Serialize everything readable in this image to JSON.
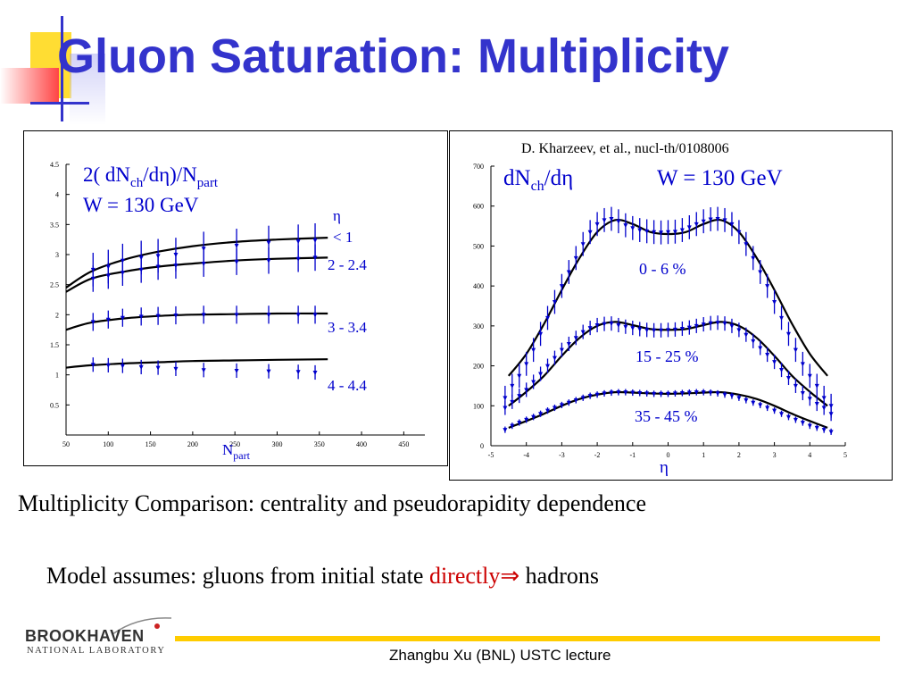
{
  "slide": {
    "title": "Gluon Saturation: Multiplicity",
    "caption": "Multiplicity Comparison: centrality and pseudorapidity dependence",
    "model_text": "Model assumes: gluons from initial state ",
    "model_highlight": "directly",
    "model_arrow": "⇒",
    "model_end": " hadrons",
    "footer": "Zhangbu Xu (BNL) USTC lecture",
    "logo_name": "BROOKHAVEN",
    "logo_sub": "NATIONAL LABORATORY"
  },
  "colors": {
    "title": "#3333cc",
    "highlight": "#cc0000",
    "data": "#0000cc",
    "model": "#000000",
    "footer_line": "#ffcc00",
    "deco_yellow": "#ffdd33",
    "deco_red": "#ff4444",
    "deco_blue": "#3333cc"
  },
  "chart_data": [
    {
      "type": "scatter",
      "title_line1": "2( dN",
      "title_sub1": "ch",
      "title_mid": "/dη)/N",
      "title_sub2": "part",
      "title_line2": "W = 130 GeV",
      "xlabel": "N",
      "xlabel_sub": "part",
      "xlim": [
        50,
        475
      ],
      "ylim": [
        0,
        4.5
      ],
      "xticks": [
        50,
        100,
        150,
        200,
        250,
        300,
        350,
        400,
        450
      ],
      "yticks": [
        0.5,
        1,
        1.5,
        2,
        2.5,
        3,
        3.5,
        4,
        4.5
      ],
      "legend_header": [
        "η",
        "< 1"
      ],
      "series": [
        {
          "name": "< 1",
          "x": [
            82,
            100,
            117,
            139,
            159,
            180,
            213,
            252,
            290,
            325,
            345
          ],
          "y": [
            2.75,
            2.8,
            2.9,
            2.95,
            2.98,
            3.0,
            3.1,
            3.15,
            3.2,
            3.22,
            3.24
          ],
          "err": [
            0.28,
            0.28,
            0.28,
            0.28,
            0.28,
            0.28,
            0.28,
            0.28,
            0.28,
            0.28,
            0.28
          ],
          "model": {
            "x": [
              50,
              80,
              120,
              160,
              200,
              250,
              300,
              360
            ],
            "y": [
              2.45,
              2.72,
              2.92,
              3.05,
              3.14,
              3.21,
              3.25,
              3.28
            ]
          }
        },
        {
          "name": "2 - 2.4",
          "x": [
            82,
            100,
            117,
            139,
            159,
            180,
            213,
            252,
            290,
            325,
            345
          ],
          "y": [
            2.6,
            2.65,
            2.7,
            2.75,
            2.8,
            2.82,
            2.85,
            2.88,
            2.9,
            2.93,
            2.95
          ],
          "err": [
            0.22,
            0.22,
            0.22,
            0.22,
            0.22,
            0.22,
            0.22,
            0.22,
            0.22,
            0.22,
            0.22
          ],
          "model": {
            "x": [
              50,
              80,
              120,
              160,
              200,
              250,
              300,
              360
            ],
            "y": [
              2.38,
              2.6,
              2.72,
              2.8,
              2.85,
              2.9,
              2.93,
              2.95
            ]
          }
        },
        {
          "name": "3 - 3.4",
          "x": [
            82,
            100,
            117,
            139,
            159,
            180,
            213,
            252,
            290,
            325,
            345
          ],
          "y": [
            1.88,
            1.92,
            1.95,
            1.97,
            1.98,
            1.99,
            2.0,
            2.0,
            2.0,
            2.0,
            2.0
          ],
          "err": [
            0.15,
            0.15,
            0.15,
            0.15,
            0.15,
            0.15,
            0.15,
            0.15,
            0.15,
            0.15,
            0.15
          ],
          "model": {
            "x": [
              50,
              80,
              120,
              160,
              200,
              250,
              300,
              360
            ],
            "y": [
              1.75,
              1.87,
              1.94,
              1.98,
              2.0,
              2.01,
              2.02,
              2.02
            ]
          }
        },
        {
          "name": "4 - 4.4",
          "x": [
            82,
            100,
            117,
            139,
            159,
            180,
            213,
            252,
            290,
            325,
            345
          ],
          "y": [
            1.17,
            1.16,
            1.15,
            1.13,
            1.12,
            1.1,
            1.08,
            1.07,
            1.06,
            1.05,
            1.04
          ],
          "err": [
            0.12,
            0.12,
            0.12,
            0.12,
            0.12,
            0.12,
            0.12,
            0.12,
            0.12,
            0.12,
            0.12
          ],
          "model": {
            "x": [
              50,
              80,
              120,
              160,
              200,
              250,
              300,
              360
            ],
            "y": [
              1.12,
              1.16,
              1.19,
              1.21,
              1.23,
              1.24,
              1.25,
              1.26
            ]
          }
        }
      ]
    },
    {
      "type": "scatter",
      "citation": "D. Kharzeev, et al., nucl-th/0108006",
      "title_left": "dN",
      "title_left_sub": "ch",
      "title_left_end": "/dη",
      "title_right": "W = 130 GeV",
      "xlabel": "η",
      "xlim": [
        -5,
        5
      ],
      "ylim": [
        0,
        700
      ],
      "xticks": [
        -5,
        -4,
        -3,
        -2,
        -1,
        0,
        1,
        2,
        3,
        4,
        5
      ],
      "yticks": [
        0,
        100,
        200,
        300,
        400,
        500,
        600,
        700
      ],
      "series": [
        {
          "name": "0 - 6 %",
          "x": [
            -4.6,
            -4.4,
            -4.2,
            -4.0,
            -3.8,
            -3.6,
            -3.4,
            -3.2,
            -3.0,
            -2.8,
            -2.6,
            -2.4,
            -2.2,
            -2.0,
            -1.8,
            -1.6,
            -1.4,
            -1.2,
            -1.0,
            -0.8,
            -0.6,
            -0.4,
            -0.2,
            0.0,
            0.2,
            0.4,
            0.6,
            0.8,
            1.0,
            1.2,
            1.4,
            1.6,
            1.8,
            2.0,
            2.2,
            2.4,
            2.6,
            2.8,
            3.0,
            3.2,
            3.4,
            3.6,
            3.8,
            4.0,
            4.2,
            4.4,
            4.6
          ],
          "y": [
            120,
            150,
            175,
            205,
            240,
            280,
            320,
            360,
            400,
            435,
            470,
            505,
            535,
            555,
            565,
            568,
            562,
            552,
            545,
            540,
            537,
            535,
            534,
            535,
            536,
            540,
            547,
            555,
            562,
            567,
            568,
            565,
            555,
            535,
            505,
            470,
            435,
            400,
            360,
            320,
            280,
            240,
            205,
            175,
            150,
            120,
            100
          ],
          "err": [
            30,
            30,
            30,
            30,
            30,
            30,
            30,
            30,
            30,
            30,
            30,
            30,
            30,
            30,
            30,
            30,
            30,
            30,
            30,
            30,
            30,
            30,
            30,
            30,
            30,
            30,
            30,
            30,
            30,
            30,
            30,
            30,
            30,
            30,
            30,
            30,
            30,
            30,
            30,
            30,
            30,
            30,
            30,
            30,
            30,
            30,
            30
          ],
          "model": {
            "x": [
              -4.5,
              -4.0,
              -3.5,
              -3.0,
              -2.5,
              -2.0,
              -1.5,
              -1.0,
              -0.5,
              0.0,
              0.5,
              1.0,
              1.5,
              2.0,
              2.5,
              3.0,
              3.5,
              4.0,
              4.5
            ],
            "y": [
              175,
              230,
              305,
              390,
              470,
              535,
              565,
              555,
              535,
              530,
              535,
              555,
              565,
              535,
              470,
              390,
              305,
              230,
              175
            ]
          }
        },
        {
          "name": "15 - 25 %",
          "x": [
            -4.6,
            -4.4,
            -4.2,
            -4.0,
            -3.8,
            -3.6,
            -3.4,
            -3.2,
            -3.0,
            -2.8,
            -2.6,
            -2.4,
            -2.2,
            -2.0,
            -1.8,
            -1.6,
            -1.4,
            -1.2,
            -1.0,
            -0.8,
            -0.6,
            -0.4,
            -0.2,
            0.0,
            0.2,
            0.4,
            0.6,
            0.8,
            1.0,
            1.2,
            1.4,
            1.6,
            1.8,
            2.0,
            2.2,
            2.4,
            2.6,
            2.8,
            3.0,
            3.2,
            3.4,
            3.6,
            3.8,
            4.0,
            4.2,
            4.4,
            4.6
          ],
          "y": [
            95,
            110,
            125,
            140,
            160,
            180,
            200,
            220,
            240,
            255,
            270,
            285,
            295,
            302,
            305,
            306,
            302,
            298,
            295,
            292,
            290,
            289,
            289,
            290,
            291,
            293,
            296,
            300,
            304,
            307,
            308,
            306,
            300,
            290,
            278,
            262,
            245,
            228,
            210,
            190,
            170,
            150,
            132,
            118,
            105,
            95,
            80
          ],
          "err": [
            18,
            18,
            18,
            18,
            18,
            18,
            18,
            18,
            18,
            18,
            18,
            18,
            18,
            18,
            18,
            18,
            18,
            18,
            18,
            18,
            18,
            18,
            18,
            18,
            18,
            18,
            18,
            18,
            18,
            18,
            18,
            18,
            18,
            18,
            18,
            18,
            18,
            18,
            18,
            18,
            18,
            18,
            18,
            18,
            18,
            18,
            18
          ],
          "model": {
            "x": [
              -4.5,
              -4.0,
              -3.5,
              -3.0,
              -2.5,
              -2.0,
              -1.5,
              -1.0,
              -0.5,
              0.0,
              0.5,
              1.0,
              1.5,
              2.0,
              2.5,
              3.0,
              3.5,
              4.0,
              4.5
            ],
            "y": [
              100,
              135,
              175,
              225,
              270,
              300,
              310,
              302,
              292,
              290,
              292,
              302,
              310,
              300,
              270,
              225,
              175,
              135,
              100
            ]
          }
        },
        {
          "name": "35 - 45 %",
          "x": [
            -4.6,
            -4.4,
            -4.2,
            -4.0,
            -3.8,
            -3.6,
            -3.4,
            -3.2,
            -3.0,
            -2.8,
            -2.6,
            -2.4,
            -2.2,
            -2.0,
            -1.8,
            -1.6,
            -1.4,
            -1.2,
            -1.0,
            -0.8,
            -0.6,
            -0.4,
            -0.2,
            0.0,
            0.2,
            0.4,
            0.6,
            0.8,
            1.0,
            1.2,
            1.4,
            1.6,
            1.8,
            2.0,
            2.2,
            2.4,
            2.6,
            2.8,
            3.0,
            3.2,
            3.4,
            3.6,
            3.8,
            4.0,
            4.2,
            4.4,
            4.6
          ],
          "y": [
            40,
            50,
            58,
            65,
            72,
            80,
            88,
            95,
            102,
            108,
            114,
            120,
            125,
            128,
            131,
            133,
            134,
            134,
            133,
            132,
            131,
            130,
            130,
            130,
            131,
            132,
            133,
            134,
            134,
            133,
            131,
            128,
            125,
            120,
            114,
            108,
            102,
            95,
            88,
            80,
            72,
            65,
            58,
            50,
            45,
            40,
            35
          ],
          "err": [
            8,
            8,
            8,
            8,
            8,
            8,
            8,
            8,
            8,
            8,
            8,
            8,
            8,
            8,
            8,
            8,
            8,
            8,
            8,
            8,
            8,
            8,
            8,
            8,
            8,
            8,
            8,
            8,
            8,
            8,
            8,
            8,
            8,
            8,
            8,
            8,
            8,
            8,
            8,
            8,
            8,
            8,
            8,
            8,
            8,
            8,
            8
          ],
          "model": {
            "x": [
              -4.5,
              -4.0,
              -3.5,
              -3.0,
              -2.5,
              -2.0,
              -1.5,
              -1.0,
              -0.5,
              0.0,
              0.5,
              1.0,
              1.5,
              2.0,
              2.5,
              3.0,
              3.5,
              4.0,
              4.5
            ],
            "y": [
              45,
              62,
              80,
              100,
              117,
              128,
              134,
              133,
              131,
              130,
              131,
              133,
              134,
              128,
              117,
              100,
              80,
              62,
              45
            ]
          }
        }
      ]
    }
  ]
}
